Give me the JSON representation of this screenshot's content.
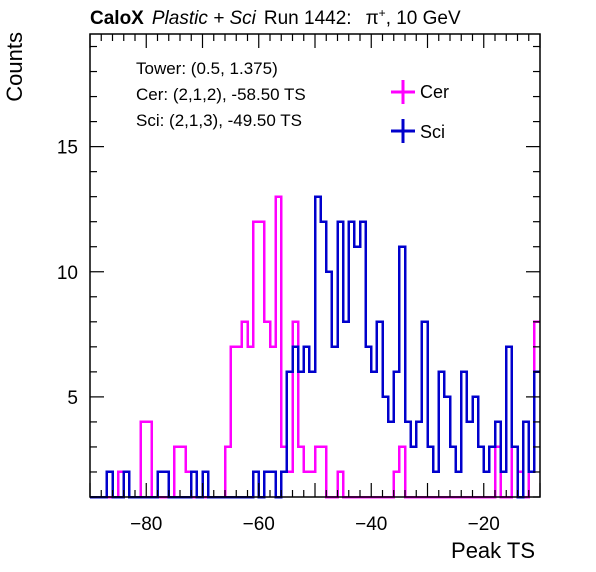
{
  "title": {
    "bold": "CaloX",
    "italic": "Plastic + Sci",
    "run": "Run 1442:",
    "particle": "π",
    "charge": "+",
    "energy": ", 10 GeV"
  },
  "info": {
    "tower": "Tower: (0.5, 1.375)",
    "cer": "Cer: (2,1,2), -58.50 TS",
    "sci": "Sci: (2,1,3), -49.50 TS"
  },
  "chart_data": {
    "type": "step-histogram",
    "xlabel": "Peak TS",
    "ylabel": "Counts",
    "xlim": [
      -90,
      -10
    ],
    "ylim": [
      1,
      19.5
    ],
    "bin_width": 1,
    "x_ticks": [
      -80,
      -60,
      -40,
      -20
    ],
    "y_ticks": [
      5,
      10,
      15
    ],
    "legend_position": "top-right",
    "series": [
      {
        "name": "Cer",
        "color": "#ff00ff",
        "bins": [
          [
            -85,
            2
          ],
          [
            -84,
            2
          ],
          [
            -81,
            4
          ],
          [
            -80,
            4
          ],
          [
            -76,
            1
          ],
          [
            -75,
            3
          ],
          [
            -74,
            3
          ],
          [
            -73,
            2
          ],
          [
            -66,
            3
          ],
          [
            -65,
            7
          ],
          [
            -64,
            7
          ],
          [
            -63,
            8
          ],
          [
            -62,
            7
          ],
          [
            -61,
            12
          ],
          [
            -60,
            12
          ],
          [
            -59,
            8
          ],
          [
            -58,
            7
          ],
          [
            -57,
            13
          ],
          [
            -56,
            3
          ],
          [
            -55,
            2
          ],
          [
            -54,
            8
          ],
          [
            -53,
            3
          ],
          [
            -52,
            2
          ],
          [
            -51,
            2
          ],
          [
            -50,
            3
          ],
          [
            -49,
            3
          ],
          [
            -46,
            2
          ],
          [
            -45,
            1
          ],
          [
            -36,
            2
          ],
          [
            -35,
            3
          ],
          [
            -26,
            1
          ],
          [
            -23,
            1
          ],
          [
            -18,
            3
          ],
          [
            -15,
            3
          ],
          [
            -14,
            2
          ],
          [
            -12,
            2
          ],
          [
            -11,
            8
          ]
        ]
      },
      {
        "name": "Sci",
        "color": "#0000cc",
        "bins": [
          [
            -87,
            2
          ],
          [
            -86,
            1
          ],
          [
            -84,
            2
          ],
          [
            -82,
            1
          ],
          [
            -78,
            2
          ],
          [
            -77,
            2
          ],
          [
            -72,
            2
          ],
          [
            -71,
            1
          ],
          [
            -70,
            2
          ],
          [
            -61,
            2
          ],
          [
            -60,
            1
          ],
          [
            -59,
            2
          ],
          [
            -58,
            2
          ],
          [
            -57,
            1
          ],
          [
            -56,
            2
          ],
          [
            -55,
            6
          ],
          [
            -54,
            7
          ],
          [
            -53,
            6
          ],
          [
            -52,
            7
          ],
          [
            -51,
            6
          ],
          [
            -50,
            13
          ],
          [
            -49,
            12
          ],
          [
            -48,
            10
          ],
          [
            -47,
            7
          ],
          [
            -46,
            12
          ],
          [
            -45,
            8
          ],
          [
            -44,
            12
          ],
          [
            -43,
            11
          ],
          [
            -42,
            12
          ],
          [
            -41,
            7
          ],
          [
            -40,
            6
          ],
          [
            -39,
            8
          ],
          [
            -38,
            5
          ],
          [
            -37,
            4
          ],
          [
            -36,
            6
          ],
          [
            -35,
            11
          ],
          [
            -34,
            4
          ],
          [
            -33,
            3
          ],
          [
            -32,
            4
          ],
          [
            -31,
            8
          ],
          [
            -30,
            3
          ],
          [
            -29,
            2
          ],
          [
            -28,
            6
          ],
          [
            -27,
            5
          ],
          [
            -26,
            3
          ],
          [
            -25,
            2
          ],
          [
            -24,
            6
          ],
          [
            -23,
            4
          ],
          [
            -22,
            5
          ],
          [
            -21,
            3
          ],
          [
            -20,
            2
          ],
          [
            -19,
            3
          ],
          [
            -18,
            4
          ],
          [
            -17,
            2
          ],
          [
            -16,
            7
          ],
          [
            -15,
            3
          ],
          [
            -14,
            1
          ],
          [
            -13,
            4
          ],
          [
            -12,
            2
          ],
          [
            -11,
            6
          ]
        ]
      }
    ]
  }
}
